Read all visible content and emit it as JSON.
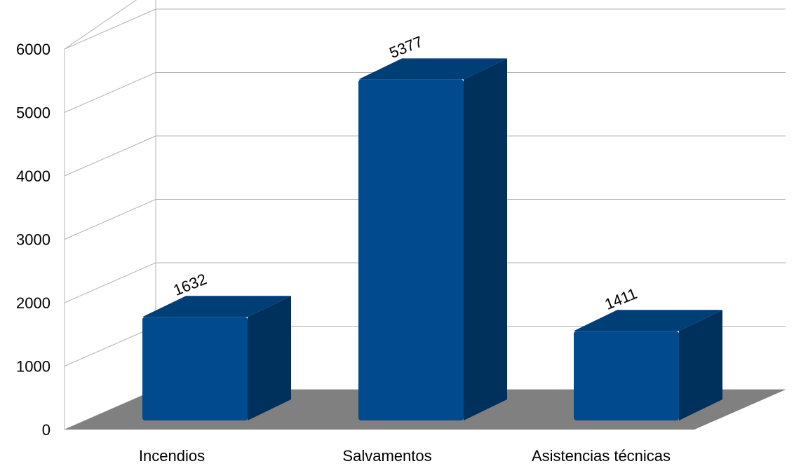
{
  "chart_data": {
    "type": "bar",
    "categories": [
      "Incendios",
      "Salvamentos",
      "Asistencias técnicas"
    ],
    "values": [
      1632,
      5377,
      1411
    ],
    "data_labels": [
      "1632",
      "5377",
      "1411"
    ],
    "ylim": [
      0,
      6000
    ],
    "yticks": [
      "0",
      "1000",
      "2000",
      "3000",
      "4000",
      "5000",
      "6000"
    ],
    "grid": true,
    "legend": false,
    "style": "3d",
    "colors": {
      "bar_front": "#004a8d",
      "bar_side": "#00305c",
      "bar_top": "#003e76",
      "floor": "#808080",
      "grid": "#b3b3b3"
    }
  }
}
